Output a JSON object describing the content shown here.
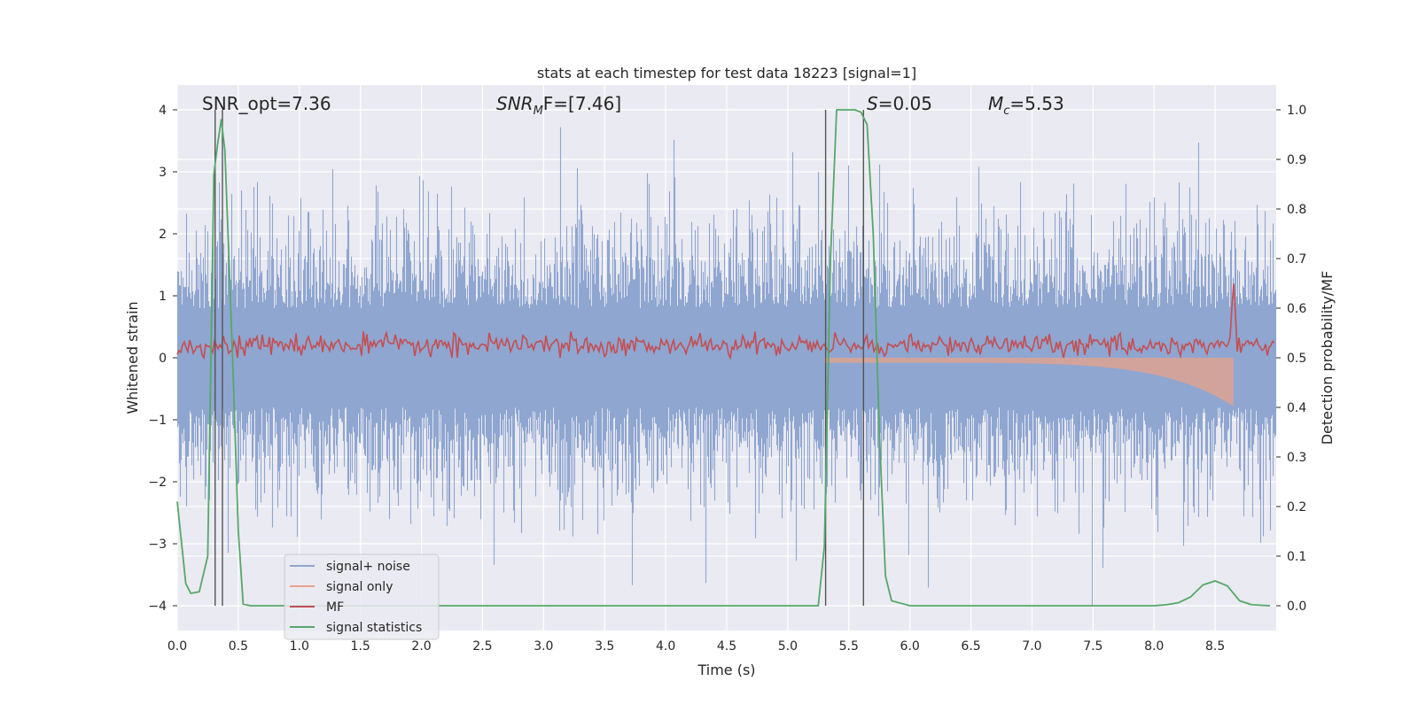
{
  "chart_data": {
    "type": "line",
    "title": "stats at each timestep for test data 18223 [signal=1]",
    "xlabel": "Time (s)",
    "ylabel_left": "Whitened strain",
    "ylabel_right": "Detection probability/MF",
    "xlim": [
      0.0,
      9.0
    ],
    "ylim_left": [
      -4.4,
      4.4
    ],
    "ylim_right": [
      -0.05,
      1.05
    ],
    "x_ticks": [
      "0.0",
      "0.5",
      "1.0",
      "1.5",
      "2.0",
      "2.5",
      "3.0",
      "3.5",
      "4.0",
      "4.5",
      "5.0",
      "5.5",
      "6.0",
      "6.5",
      "7.0",
      "7.5",
      "8.0",
      "8.5"
    ],
    "y_left_ticks": [
      "−4",
      "−3",
      "−2",
      "−1",
      "0",
      "1",
      "2",
      "3",
      "4"
    ],
    "y_right_ticks": [
      "0.0",
      "0.1",
      "0.2",
      "0.3",
      "0.4",
      "0.5",
      "0.6",
      "0.7",
      "0.8",
      "0.9",
      "1.0"
    ],
    "grid": true,
    "legend_position": "lower-left",
    "annotations": {
      "snr_opt": "SNR_opt=7.36",
      "snr_mf_main": "SNR",
      "snr_mf_sub": "M",
      "snr_mf_rest": "F=[7.46]",
      "s_var": "S",
      "s_value": "=0.05",
      "mc_var": "M",
      "mc_sub": "c",
      "mc_value": "=5.53"
    },
    "series": [
      {
        "name": "signal+ noise",
        "color": "#8fa6d0",
        "description_values": "noise envelope roughly within [-2.5, 2.5], peaks to ~4"
      },
      {
        "name": "signal only",
        "color": "#e8a28a",
        "chirp_ends_at": 8.65,
        "amplitude_at_end": 0.7
      },
      {
        "name": "MF",
        "color": "#c44e52",
        "baseline": 0.2,
        "peak_x": 8.65,
        "peak_y": 1.0
      },
      {
        "name": "signal statistics",
        "color": "#55a868",
        "x": [
          0.0,
          0.07,
          0.11,
          0.18,
          0.25,
          0.3,
          0.33,
          0.36,
          0.39,
          0.42,
          0.46,
          0.5,
          0.54,
          0.6,
          1.0,
          2.0,
          3.0,
          4.0,
          5.0,
          5.25,
          5.3,
          5.35,
          5.4,
          5.5,
          5.55,
          5.6,
          5.65,
          5.7,
          5.75,
          5.8,
          5.85,
          6.0,
          7.0,
          8.0,
          8.1,
          8.2,
          8.3,
          8.4,
          8.5,
          8.6,
          8.7,
          8.8,
          8.95
        ],
        "y": [
          0.21,
          0.045,
          0.025,
          0.028,
          0.1,
          0.87,
          0.93,
          0.98,
          0.92,
          0.72,
          0.45,
          0.15,
          0.003,
          0.0,
          0.0,
          0.0,
          0.0,
          0.0,
          0.0,
          0.0,
          0.12,
          0.7,
          1.0,
          1.0,
          1.0,
          0.995,
          0.97,
          0.75,
          0.35,
          0.06,
          0.01,
          0.0,
          0.0,
          0.0,
          0.002,
          0.006,
          0.018,
          0.042,
          0.05,
          0.04,
          0.01,
          0.002,
          0.0
        ]
      }
    ],
    "vertical_lines_x": [
      0.31,
      0.37,
      5.31,
      5.62
    ],
    "horizontal_reference_left_y": [
      1.6,
      0.8,
      -0.8,
      -1.6
    ]
  }
}
